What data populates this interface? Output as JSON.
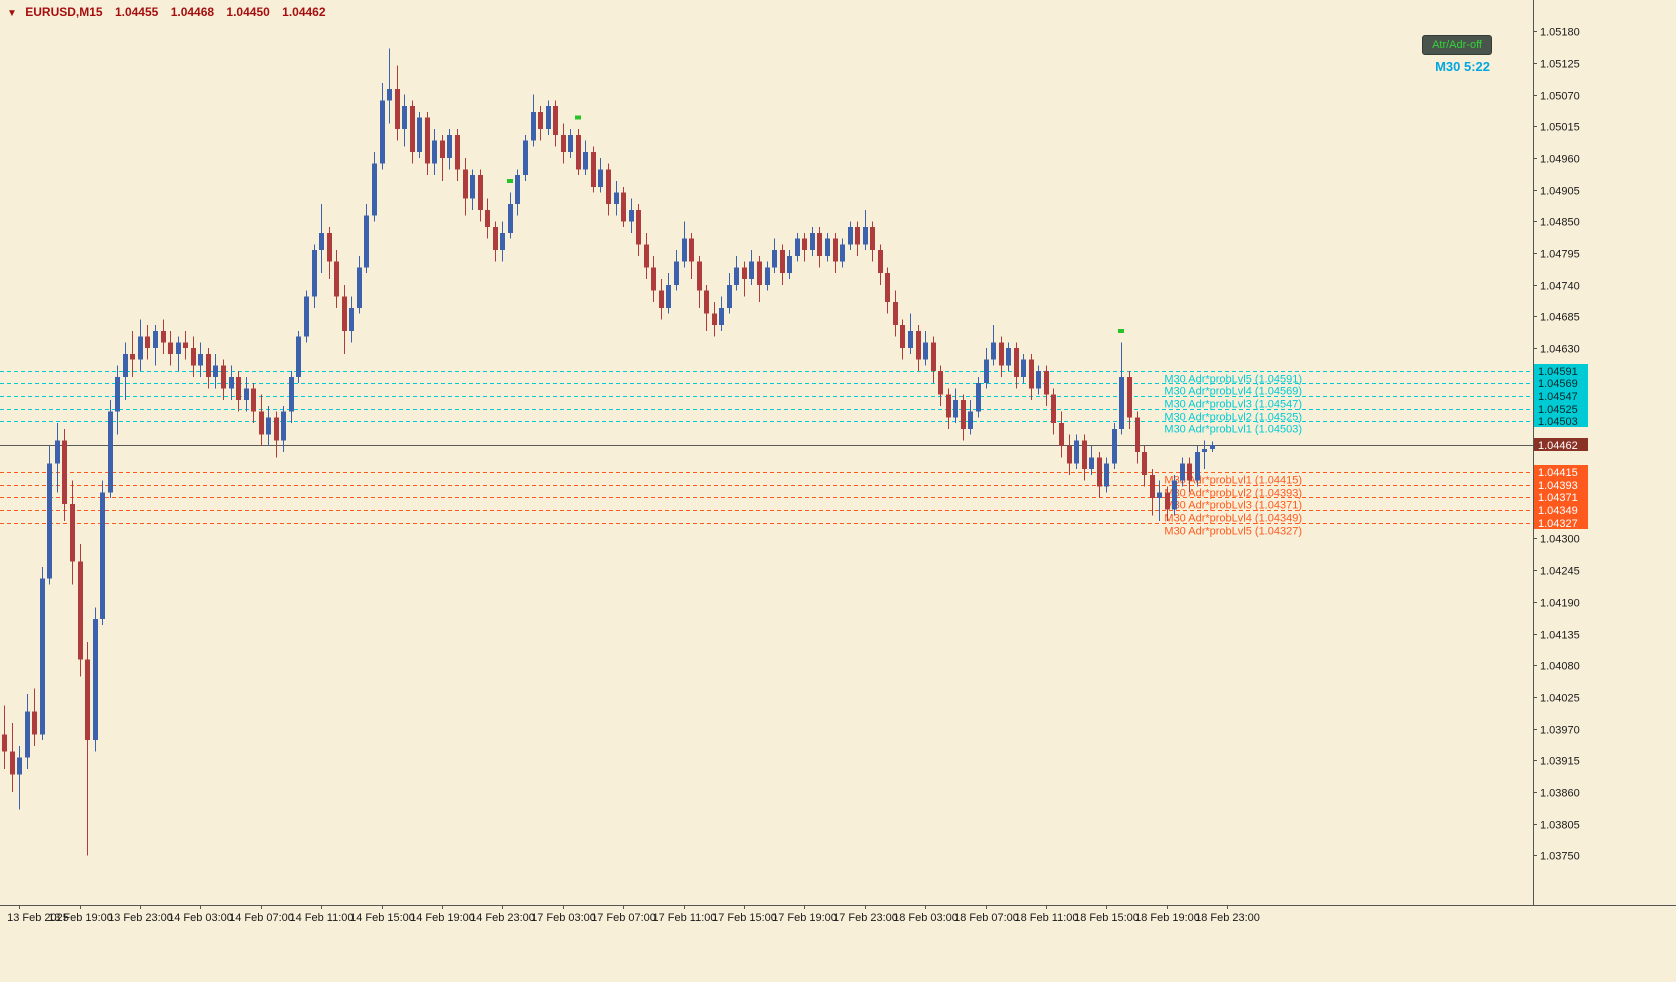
{
  "header": {
    "direction_icon": "▼",
    "symbol": "EURUSD,M15",
    "open": "1.04455",
    "high": "1.04468",
    "low": "1.04450",
    "close": "1.04462"
  },
  "toolbar": {
    "atr_adr_button": "Atr/Adr-off",
    "countdown": "M30 5:22"
  },
  "chart_data": {
    "type": "candlestick",
    "symbol": "EURUSD",
    "timeframe": "M15",
    "title": "EURUSD,M15",
    "price_axis": {
      "top_price": 1.05234,
      "bottom_price": 1.03664,
      "ticks": [
        "1.05180",
        "1.05125",
        "1.05070",
        "1.05015",
        "1.04960",
        "1.04905",
        "1.04850",
        "1.04795",
        "1.04740",
        "1.04685",
        "1.04630",
        "1.04300",
        "1.04245",
        "1.04190",
        "1.04135",
        "1.04080",
        "1.04025",
        "1.03970",
        "1.03915",
        "1.03860",
        "1.03805",
        "1.03750"
      ]
    },
    "time_labels": [
      "13 Feb 2025",
      "13 Feb 19:00",
      "13 Feb 23:00",
      "14 Feb 03:00",
      "14 Feb 07:00",
      "14 Feb 11:00",
      "14 Feb 15:00",
      "14 Feb 19:00",
      "14 Feb 23:00",
      "17 Feb 03:00",
      "17 Feb 07:00",
      "17 Feb 11:00",
      "17 Feb 15:00",
      "17 Feb 19:00",
      "17 Feb 23:00",
      "18 Feb 03:00",
      "18 Feb 07:00",
      "18 Feb 11:00",
      "18 Feb 15:00",
      "18 Feb 19:00",
      "18 Feb 23:00"
    ],
    "label_start_index": 2,
    "label_step": 8,
    "current_price": 1.04462,
    "current_price_label": "1.04462",
    "levels": {
      "upper": [
        {
          "label": "M30 Adr*probLvl5 (1.04591)",
          "price": 1.04591,
          "axis_label": "1.04591"
        },
        {
          "label": "M30 Adr*probLvl4 (1.04569)",
          "price": 1.04569,
          "axis_label": "1.04569"
        },
        {
          "label": "M30 Adr*probLvl3 (1.04547)",
          "price": 1.04547,
          "axis_label": "1.04547"
        },
        {
          "label": "M30 Adr*probLvl2 (1.04525)",
          "price": 1.04525,
          "axis_label": "1.04525"
        },
        {
          "label": "M30 Adr*probLvl1 (1.04503)",
          "price": 1.04503,
          "axis_label": "1.04503"
        }
      ],
      "lower": [
        {
          "label": "M30 Adr*probLvl1 (1.04415)",
          "price": 1.04415,
          "axis_label": "1.04415"
        },
        {
          "label": "M30 Adr*probLvl2 (1.04393)",
          "price": 1.04393,
          "axis_label": "1.04393"
        },
        {
          "label": "M30 Adr*probLvl3 (1.04371)",
          "price": 1.04371,
          "axis_label": "1.04371"
        },
        {
          "label": "M30 Adr*probLvl4 (1.04349)",
          "price": 1.04349,
          "axis_label": "1.04349"
        },
        {
          "label": "M30 Adr*probLvl5 (1.04327)",
          "price": 1.04327,
          "axis_label": "1.04327"
        }
      ]
    },
    "markers": [
      {
        "index": 67,
        "price": 1.0492
      },
      {
        "index": 76,
        "price": 1.0503
      },
      {
        "index": 148,
        "price": 1.0466
      }
    ],
    "candles": [
      [
        1.0396,
        1.0401,
        1.039,
        1.0393
      ],
      [
        1.0393,
        1.0398,
        1.0386,
        1.0389
      ],
      [
        1.0389,
        1.0394,
        1.0383,
        1.0392
      ],
      [
        1.0392,
        1.0403,
        1.039,
        1.04
      ],
      [
        1.04,
        1.0404,
        1.0394,
        1.0396
      ],
      [
        1.0396,
        1.0425,
        1.0395,
        1.0423
      ],
      [
        1.0423,
        1.0446,
        1.0422,
        1.0443
      ],
      [
        1.0443,
        1.045,
        1.0438,
        1.0447
      ],
      [
        1.0447,
        1.0449,
        1.0433,
        1.0436
      ],
      [
        1.0436,
        1.044,
        1.0422,
        1.0426
      ],
      [
        1.0426,
        1.0429,
        1.0406,
        1.0409
      ],
      [
        1.0409,
        1.0412,
        1.0375,
        1.0395
      ],
      [
        1.0395,
        1.0418,
        1.0393,
        1.0416
      ],
      [
        1.0416,
        1.044,
        1.0415,
        1.0438
      ],
      [
        1.0438,
        1.0454,
        1.0437,
        1.0452
      ],
      [
        1.0452,
        1.046,
        1.0448,
        1.0458
      ],
      [
        1.0458,
        1.0464,
        1.0454,
        1.0462
      ],
      [
        1.0462,
        1.0466,
        1.0458,
        1.0461
      ],
      [
        1.0461,
        1.0468,
        1.0459,
        1.0465
      ],
      [
        1.0465,
        1.0467,
        1.0461,
        1.0463
      ],
      [
        1.0463,
        1.0467,
        1.046,
        1.0466
      ],
      [
        1.0466,
        1.0468,
        1.0462,
        1.0464
      ],
      [
        1.0464,
        1.0466,
        1.046,
        1.0462
      ],
      [
        1.0462,
        1.0465,
        1.0459,
        1.0464
      ],
      [
        1.0464,
        1.0466,
        1.0461,
        1.0463
      ],
      [
        1.0463,
        1.0465,
        1.0458,
        1.046
      ],
      [
        1.046,
        1.0464,
        1.0458,
        1.0462
      ],
      [
        1.0462,
        1.0463,
        1.0456,
        1.0458
      ],
      [
        1.0458,
        1.0462,
        1.0456,
        1.046
      ],
      [
        1.046,
        1.0461,
        1.0454,
        1.0456
      ],
      [
        1.0456,
        1.046,
        1.0454,
        1.0458
      ],
      [
        1.0458,
        1.0459,
        1.0452,
        1.0454
      ],
      [
        1.0454,
        1.0458,
        1.0452,
        1.0456
      ],
      [
        1.0456,
        1.0457,
        1.045,
        1.0452
      ],
      [
        1.0452,
        1.0455,
        1.0446,
        1.0448
      ],
      [
        1.0448,
        1.0453,
        1.0446,
        1.0451
      ],
      [
        1.0451,
        1.0452,
        1.0444,
        1.0447
      ],
      [
        1.0447,
        1.0453,
        1.0445,
        1.0452
      ],
      [
        1.0452,
        1.0459,
        1.045,
        1.0458
      ],
      [
        1.0458,
        1.0466,
        1.0457,
        1.0465
      ],
      [
        1.0465,
        1.0473,
        1.0464,
        1.0472
      ],
      [
        1.0472,
        1.0481,
        1.047,
        1.048
      ],
      [
        1.048,
        1.0488,
        1.0476,
        1.0483
      ],
      [
        1.0483,
        1.0484,
        1.0475,
        1.0478
      ],
      [
        1.0478,
        1.048,
        1.047,
        1.0472
      ],
      [
        1.0472,
        1.0474,
        1.0462,
        1.0466
      ],
      [
        1.0466,
        1.0472,
        1.0464,
        1.047
      ],
      [
        1.047,
        1.0479,
        1.0469,
        1.0477
      ],
      [
        1.0477,
        1.0488,
        1.0476,
        1.0486
      ],
      [
        1.0486,
        1.0497,
        1.0485,
        1.0495
      ],
      [
        1.0495,
        1.0509,
        1.0494,
        1.0506
      ],
      [
        1.0506,
        1.0515,
        1.0502,
        1.0508
      ],
      [
        1.0508,
        1.0512,
        1.0499,
        1.0501
      ],
      [
        1.0501,
        1.0507,
        1.0498,
        1.0505
      ],
      [
        1.0505,
        1.0506,
        1.0495,
        1.0497
      ],
      [
        1.0497,
        1.0504,
        1.0496,
        1.0503
      ],
      [
        1.0503,
        1.0504,
        1.0493,
        1.0495
      ],
      [
        1.0495,
        1.0501,
        1.0493,
        1.0499
      ],
      [
        1.0499,
        1.05,
        1.0492,
        1.0496
      ],
      [
        1.0496,
        1.0501,
        1.0494,
        1.05
      ],
      [
        1.05,
        1.0501,
        1.0492,
        1.0494
      ],
      [
        1.0494,
        1.0496,
        1.0486,
        1.0489
      ],
      [
        1.0489,
        1.0494,
        1.0487,
        1.0493
      ],
      [
        1.0493,
        1.0494,
        1.0485,
        1.0487
      ],
      [
        1.0487,
        1.0489,
        1.0482,
        1.0484
      ],
      [
        1.0484,
        1.0485,
        1.0478,
        1.048
      ],
      [
        1.048,
        1.0485,
        1.0478,
        1.0483
      ],
      [
        1.0483,
        1.049,
        1.0482,
        1.0488
      ],
      [
        1.0488,
        1.0494,
        1.0486,
        1.0493
      ],
      [
        1.0493,
        1.05,
        1.0492,
        1.0499
      ],
      [
        1.0499,
        1.0507,
        1.0498,
        1.0504
      ],
      [
        1.0504,
        1.0505,
        1.0499,
        1.0501
      ],
      [
        1.0501,
        1.0506,
        1.05,
        1.0505
      ],
      [
        1.0505,
        1.0506,
        1.0498,
        1.05
      ],
      [
        1.05,
        1.0502,
        1.0495,
        1.0497
      ],
      [
        1.0497,
        1.0501,
        1.0496,
        1.05
      ],
      [
        1.05,
        1.0501,
        1.0493,
        1.0494
      ],
      [
        1.0494,
        1.0499,
        1.0493,
        1.0497
      ],
      [
        1.0497,
        1.0498,
        1.049,
        1.0491
      ],
      [
        1.0491,
        1.0496,
        1.049,
        1.0494
      ],
      [
        1.0494,
        1.0495,
        1.0486,
        1.0488
      ],
      [
        1.0488,
        1.0492,
        1.0486,
        1.049
      ],
      [
        1.049,
        1.0491,
        1.0484,
        1.0485
      ],
      [
        1.0485,
        1.0489,
        1.0483,
        1.0487
      ],
      [
        1.0487,
        1.0488,
        1.0479,
        1.0481
      ],
      [
        1.0481,
        1.0483,
        1.0475,
        1.0477
      ],
      [
        1.0477,
        1.0479,
        1.0471,
        1.0473
      ],
      [
        1.0473,
        1.0475,
        1.0468,
        1.047
      ],
      [
        1.047,
        1.0476,
        1.0469,
        1.0474
      ],
      [
        1.0474,
        1.048,
        1.0473,
        1.0478
      ],
      [
        1.0478,
        1.0485,
        1.0477,
        1.0482
      ],
      [
        1.0482,
        1.0483,
        1.0475,
        1.0478
      ],
      [
        1.0478,
        1.0479,
        1.047,
        1.0473
      ],
      [
        1.0473,
        1.0474,
        1.0466,
        1.0469
      ],
      [
        1.0469,
        1.0471,
        1.0465,
        1.0467
      ],
      [
        1.0467,
        1.0472,
        1.0466,
        1.047
      ],
      [
        1.047,
        1.0476,
        1.0469,
        1.0474
      ],
      [
        1.0474,
        1.0479,
        1.0473,
        1.0477
      ],
      [
        1.0477,
        1.0478,
        1.0472,
        1.0475
      ],
      [
        1.0475,
        1.048,
        1.0474,
        1.0478
      ],
      [
        1.0478,
        1.0479,
        1.0471,
        1.0474
      ],
      [
        1.0474,
        1.0478,
        1.0473,
        1.0477
      ],
      [
        1.0477,
        1.0482,
        1.0476,
        1.048
      ],
      [
        1.048,
        1.0481,
        1.0474,
        1.0476
      ],
      [
        1.0476,
        1.048,
        1.0475,
        1.0479
      ],
      [
        1.0479,
        1.0483,
        1.0478,
        1.0482
      ],
      [
        1.0482,
        1.0483,
        1.0478,
        1.048
      ],
      [
        1.048,
        1.0484,
        1.0479,
        1.0483
      ],
      [
        1.0483,
        1.0484,
        1.0477,
        1.0479
      ],
      [
        1.0479,
        1.0483,
        1.0478,
        1.0482
      ],
      [
        1.0482,
        1.0483,
        1.0476,
        1.0478
      ],
      [
        1.0478,
        1.0482,
        1.0477,
        1.0481
      ],
      [
        1.0481,
        1.0485,
        1.048,
        1.0484
      ],
      [
        1.0484,
        1.0485,
        1.0479,
        1.0481
      ],
      [
        1.0481,
        1.0487,
        1.048,
        1.0484
      ],
      [
        1.0484,
        1.0485,
        1.0478,
        1.048
      ],
      [
        1.048,
        1.0481,
        1.0474,
        1.0476
      ],
      [
        1.0476,
        1.0477,
        1.0469,
        1.0471
      ],
      [
        1.0471,
        1.0473,
        1.0465,
        1.0467
      ],
      [
        1.0467,
        1.0468,
        1.0461,
        1.0463
      ],
      [
        1.0463,
        1.0469,
        1.0462,
        1.0466
      ],
      [
        1.0466,
        1.0467,
        1.0459,
        1.0461
      ],
      [
        1.0461,
        1.0466,
        1.046,
        1.0464
      ],
      [
        1.0464,
        1.0465,
        1.0457,
        1.0459
      ],
      [
        1.0459,
        1.046,
        1.0453,
        1.0455
      ],
      [
        1.0455,
        1.0456,
        1.0449,
        1.0451
      ],
      [
        1.0451,
        1.0456,
        1.045,
        1.0454
      ],
      [
        1.0454,
        1.0455,
        1.0447,
        1.0449
      ],
      [
        1.0449,
        1.0454,
        1.0448,
        1.0452
      ],
      [
        1.0452,
        1.0458,
        1.0451,
        1.0457
      ],
      [
        1.0457,
        1.0463,
        1.0456,
        1.0461
      ],
      [
        1.0461,
        1.0467,
        1.046,
        1.0464
      ],
      [
        1.0464,
        1.0465,
        1.0458,
        1.046
      ],
      [
        1.046,
        1.0464,
        1.0459,
        1.0463
      ],
      [
        1.0463,
        1.0464,
        1.0456,
        1.0458
      ],
      [
        1.0458,
        1.0462,
        1.0457,
        1.0461
      ],
      [
        1.0461,
        1.0462,
        1.0454,
        1.0456
      ],
      [
        1.0456,
        1.046,
        1.0455,
        1.0459
      ],
      [
        1.0459,
        1.046,
        1.0453,
        1.0455
      ],
      [
        1.0455,
        1.0456,
        1.0448,
        1.045
      ],
      [
        1.045,
        1.0452,
        1.0444,
        1.0446
      ],
      [
        1.0446,
        1.0448,
        1.0441,
        1.0443
      ],
      [
        1.0443,
        1.0448,
        1.0442,
        1.0447
      ],
      [
        1.0447,
        1.0448,
        1.044,
        1.0442
      ],
      [
        1.0442,
        1.0446,
        1.0441,
        1.0444
      ],
      [
        1.0444,
        1.0445,
        1.0437,
        1.0439
      ],
      [
        1.0439,
        1.0444,
        1.0438,
        1.0443
      ],
      [
        1.0443,
        1.045,
        1.0442,
        1.0449
      ],
      [
        1.0449,
        1.0464,
        1.0448,
        1.0458
      ],
      [
        1.0458,
        1.0459,
        1.0449,
        1.0451
      ],
      [
        1.0451,
        1.0452,
        1.0443,
        1.0445
      ],
      [
        1.0445,
        1.0446,
        1.0439,
        1.0441
      ],
      [
        1.0441,
        1.0442,
        1.0434,
        1.0437
      ],
      [
        1.0437,
        1.044,
        1.0433,
        1.0438
      ],
      [
        1.0438,
        1.0439,
        1.0433,
        1.0435
      ],
      [
        1.0435,
        1.0441,
        1.0434,
        1.044
      ],
      [
        1.044,
        1.0444,
        1.0439,
        1.0443
      ],
      [
        1.0443,
        1.0444,
        1.0438,
        1.044
      ],
      [
        1.044,
        1.0446,
        1.0439,
        1.0445
      ],
      [
        1.0445,
        1.0447,
        1.0442,
        1.04455
      ],
      [
        1.04455,
        1.04468,
        1.0445,
        1.04462
      ]
    ],
    "colors": {
      "background": "#F8EFD9",
      "bull": "#3C62AE",
      "bear": "#AF3C3C",
      "upper_level": "#00CBD4",
      "upper_box_text": "#00282B",
      "lower_level": "#FF5A1E",
      "lower_box_text": "#FFFFFF",
      "current_price_box": "#8B3226",
      "current_price_box_text": "#FFFFFF",
      "current_price_line": "#5A5A5A",
      "axis_text": "#1A1A1A",
      "separator": "#555555",
      "marker": "#27C427",
      "header_text": "#A50E0E",
      "countdown_text": "#00A7E1",
      "button_text": "#35D435",
      "button_bg": "#49544C",
      "button_border": "#333C36"
    }
  }
}
